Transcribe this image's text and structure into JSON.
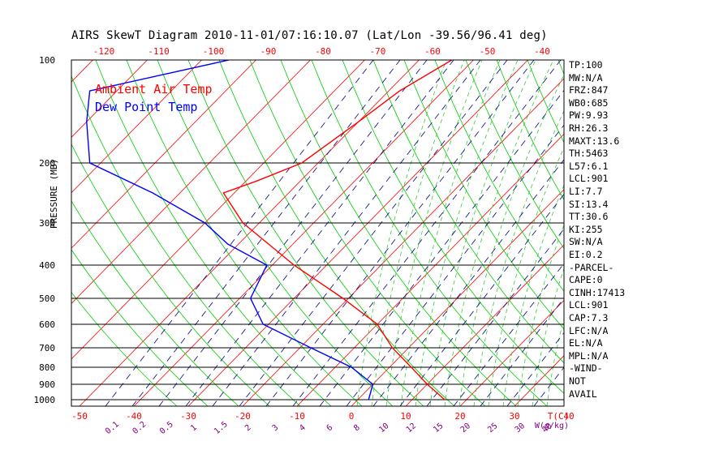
{
  "title": "AIRS SkewT Diagram 2010-11-01/07:16:10.07 (Lat/Lon -39.56/96.41 deg)",
  "legend": {
    "ambient": "Ambient Air Temp",
    "dewpoint": "Dew Point Temp"
  },
  "y_axis_label": "PRESSURE (MB)",
  "x_axis_unit_label": "T(C)",
  "mixing_ratio_unit_label": "W(g/kg)",
  "colors": {
    "ambient": "#ff0000",
    "dewpoint": "#0000ff",
    "isotherm": "#ff0000",
    "dry_adiabat": "#00cc00",
    "moist_adiabat": "#33cc33",
    "mixing_ratio": "#000080",
    "axis": "#000000",
    "tick_label": "#ff0000",
    "mixing_label": "#800080"
  },
  "indices": [
    "TP:100",
    "MW:N/A",
    "FRZ:847",
    "WB0:685",
    "PW:9.93",
    "RH:26.3",
    "MAXT:13.6",
    "TH:5463",
    "L57:6.1",
    "LCL:901",
    "LI:7.7",
    "SI:13.4",
    "TT:30.6",
    "KI:255",
    "SW:N/A",
    "EI:0.2",
    "-PARCEL-",
    "CAPE:0",
    "CINH:17413",
    "LCL:901",
    "CAP:7.3",
    "LFC:N/A",
    "EL:N/A",
    "MPL:N/A",
    "-WIND-",
    "NOT",
    "AVAIL"
  ],
  "chart_data": {
    "type": "line",
    "title": "AIRS SkewT Diagram 2010-11-01/07:16:10.07 (Lat/Lon -39.56/96.41 deg)",
    "ylabel": "PRESSURE (MB)",
    "xlabel": "T(C)",
    "pressure_ticks": [
      100,
      200,
      300,
      400,
      500,
      600,
      700,
      800,
      900,
      1000
    ],
    "bottom_temp_ticks": [
      -50,
      -40,
      -30,
      -20,
      -10,
      0,
      10,
      20,
      30,
      40
    ],
    "top_temp_ticks": [
      -120,
      -110,
      -100,
      -90,
      -80,
      -70,
      -60,
      -50,
      -40
    ],
    "mixing_ratio_ticks": [
      "0.1",
      "0.2",
      "0.5",
      "1",
      "1.5",
      "2",
      "3",
      "4",
      "6",
      "8",
      "10",
      "12",
      "15",
      "20",
      "25",
      "30",
      "40"
    ],
    "series": [
      {
        "name": "Ambient Air Temp",
        "points": [
          [
            100,
            -44
          ],
          [
            130,
            -48
          ],
          [
            160,
            -50
          ],
          [
            200,
            -53
          ],
          [
            230,
            -58
          ],
          [
            250,
            -62
          ],
          [
            300,
            -53
          ],
          [
            400,
            -36
          ],
          [
            500,
            -21
          ],
          [
            600,
            -10
          ],
          [
            700,
            -3
          ],
          [
            800,
            4
          ],
          [
            900,
            10
          ],
          [
            1000,
            16
          ]
        ]
      },
      {
        "name": "Dew Point Temp",
        "points": [
          [
            100,
            -85
          ],
          [
            130,
            -105
          ],
          [
            160,
            -100
          ],
          [
            200,
            -92
          ],
          [
            250,
            -75
          ],
          [
            300,
            -60
          ],
          [
            350,
            -52
          ],
          [
            400,
            -41
          ],
          [
            500,
            -38
          ],
          [
            600,
            -31
          ],
          [
            700,
            -18
          ],
          [
            800,
            -7
          ],
          [
            900,
            0
          ],
          [
            1000,
            2
          ]
        ]
      }
    ]
  }
}
